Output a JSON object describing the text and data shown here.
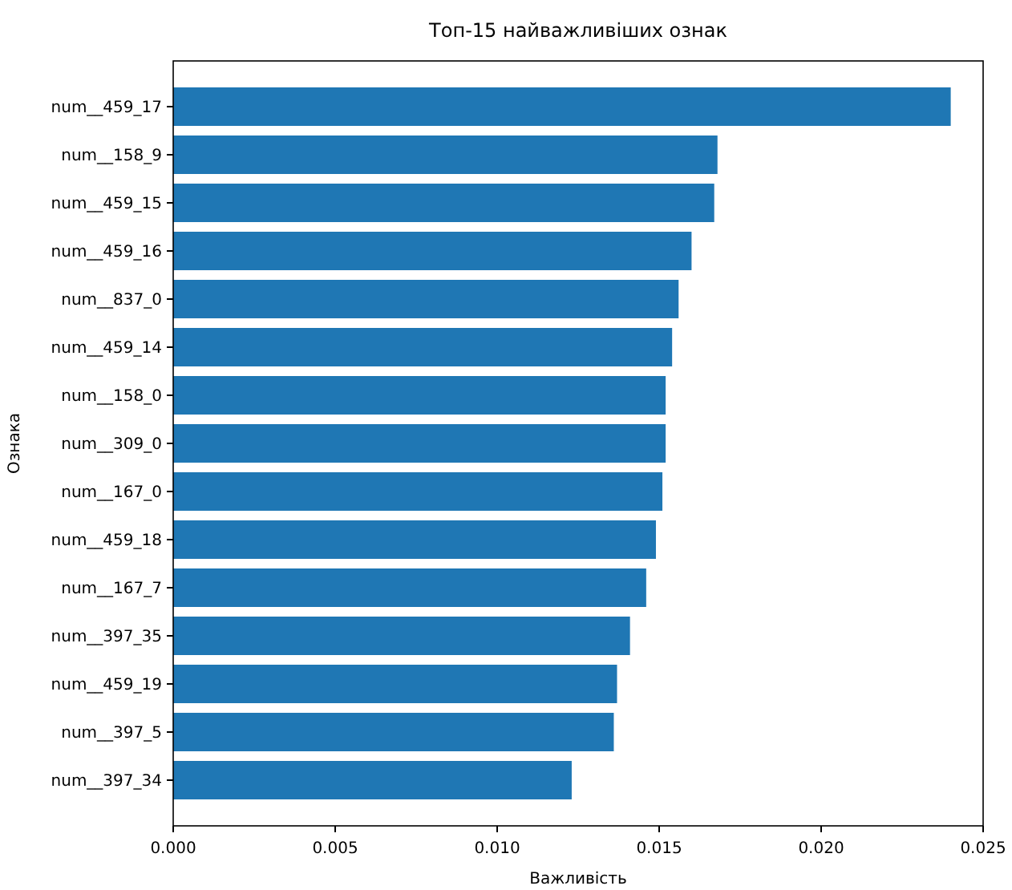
{
  "chart_data": {
    "type": "bar",
    "orientation": "horizontal",
    "title": "Топ-15 найважливіших ознак",
    "xlabel": "Важливість",
    "ylabel": "Ознака",
    "categories": [
      "num__459_17",
      "num__158_9",
      "num__459_15",
      "num__459_16",
      "num__837_0",
      "num__459_14",
      "num__158_0",
      "num__309_0",
      "num__167_0",
      "num__459_18",
      "num__167_7",
      "num__397_35",
      "num__459_19",
      "num__397_5",
      "num__397_34"
    ],
    "values": [
      0.024,
      0.0168,
      0.0167,
      0.016,
      0.0156,
      0.0154,
      0.0152,
      0.0152,
      0.0151,
      0.0149,
      0.0146,
      0.0141,
      0.0137,
      0.0136,
      0.0123
    ],
    "color": "#1f77b4",
    "xlim": [
      0,
      0.025
    ],
    "xticks": [
      {
        "value": 0,
        "label": "0.000"
      },
      {
        "value": 0.005,
        "label": "0.005"
      },
      {
        "value": 0.01,
        "label": "0.010"
      },
      {
        "value": 0.015,
        "label": "0.015"
      },
      {
        "value": 0.02,
        "label": "0.020"
      },
      {
        "value": 0.025,
        "label": "0.025"
      }
    ]
  }
}
